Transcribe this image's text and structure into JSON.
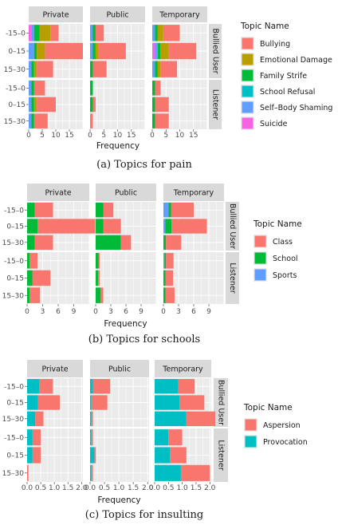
{
  "chart_data": [
    {
      "type": "bar",
      "orientation": "horizontal",
      "stacked": true,
      "caption": "(a) Topics for pain",
      "xlabel": "Frequency",
      "xlim": [
        0,
        20
      ],
      "xticks": [
        0,
        5,
        10,
        15
      ],
      "facet_cols": [
        "Private",
        "Public",
        "Temporary"
      ],
      "facet_rows": [
        "Bullied User",
        "Listener"
      ],
      "categories": [
        "-15–0",
        "0–15",
        "15–30"
      ],
      "legend_title": "Topic Name",
      "series": [
        {
          "name": "Bullying",
          "color": "#F8766D"
        },
        {
          "name": "Emotional Damage",
          "color": "#B79F00"
        },
        {
          "name": "Family Strife",
          "color": "#00BA38"
        },
        {
          "name": "School Refusal",
          "color": "#00BFC4"
        },
        {
          "name": "Self–Body Shaming",
          "color": "#619CFF"
        },
        {
          "name": "Suicide",
          "color": "#F564E3"
        }
      ],
      "panels": [
        {
          "row": 0,
          "col": 0,
          "bars": [
            [
              3,
              4,
              2,
              0,
              1,
              1
            ],
            [
              14,
              3,
              1,
              0,
              2,
              0
            ],
            [
              6,
              1,
              1,
              0,
              1,
              0
            ]
          ]
        },
        {
          "row": 0,
          "col": 1,
          "bars": [
            [
              3,
              0,
              1,
              0,
              1,
              0
            ],
            [
              10,
              1,
              1,
              0,
              1,
              0
            ],
            [
              5,
              0,
              1,
              0,
              0,
              0
            ]
          ]
        },
        {
          "row": 0,
          "col": 2,
          "bars": [
            [
              6,
              2,
              1,
              0,
              1,
              0
            ],
            [
              10,
              3,
              1,
              0,
              1,
              1
            ],
            [
              6,
              1,
              1,
              0,
              1,
              0
            ]
          ]
        },
        {
          "row": 1,
          "col": 0,
          "bars": [
            [
              4,
              0,
              1,
              0,
              1,
              0
            ],
            [
              7,
              1,
              1,
              0,
              1,
              0
            ],
            [
              5,
              0,
              1,
              0,
              1,
              0
            ]
          ]
        },
        {
          "row": 1,
          "col": 1,
          "bars": [
            [
              0,
              0,
              1,
              0,
              0,
              0
            ],
            [
              1,
              0,
              1,
              0,
              0,
              0
            ],
            [
              1,
              0,
              0,
              0,
              0,
              0
            ]
          ]
        },
        {
          "row": 1,
          "col": 2,
          "bars": [
            [
              2,
              0,
              1,
              0,
              0,
              0
            ],
            [
              5,
              0,
              1,
              0,
              0,
              0
            ],
            [
              5,
              0,
              1,
              0,
              0,
              0
            ]
          ]
        }
      ]
    },
    {
      "type": "bar",
      "orientation": "horizontal",
      "stacked": true,
      "caption": "(b) Topics for schools",
      "xlabel": "Frequency",
      "xlim": [
        0,
        12
      ],
      "xticks": [
        0,
        3,
        6,
        9
      ],
      "facet_cols": [
        "Private",
        "Public",
        "Temporary"
      ],
      "facet_rows": [
        "Bullied User",
        "Listener"
      ],
      "categories": [
        "-15–0",
        "0–15",
        "15–30"
      ],
      "legend_title": "Topic Name",
      "series": [
        {
          "name": "Class",
          "color": "#F8766D"
        },
        {
          "name": "School",
          "color": "#00BA38"
        },
        {
          "name": "Sports",
          "color": "#619CFF"
        }
      ],
      "panels": [
        {
          "row": 0,
          "col": 0,
          "bars": [
            [
              3.5,
              1.5,
              0
            ],
            [
              12,
              2,
              0
            ],
            [
              3.5,
              1.5,
              0
            ]
          ]
        },
        {
          "row": 0,
          "col": 1,
          "bars": [
            [
              2,
              1.5,
              0
            ],
            [
              3.5,
              1.5,
              0
            ],
            [
              2,
              5,
              0
            ]
          ]
        },
        {
          "row": 0,
          "col": 2,
          "bars": [
            [
              4.5,
              0.5,
              1
            ],
            [
              7,
              1.2,
              0.4
            ],
            [
              3,
              0.5,
              0
            ]
          ]
        },
        {
          "row": 1,
          "col": 0,
          "bars": [
            [
              1.5,
              0.5,
              0
            ],
            [
              3.5,
              1,
              0
            ],
            [
              2,
              0.5,
              0
            ]
          ]
        },
        {
          "row": 1,
          "col": 1,
          "bars": [
            [
              0.2,
              0.6,
              0
            ],
            [
              0.3,
              0.5,
              0
            ],
            [
              0.5,
              1,
              0
            ]
          ]
        },
        {
          "row": 1,
          "col": 2,
          "bars": [
            [
              1.5,
              0.3,
              0.2
            ],
            [
              1.5,
              0.4,
              0
            ],
            [
              1.8,
              0.4,
              0
            ]
          ]
        }
      ]
    },
    {
      "type": "bar",
      "orientation": "horizontal",
      "stacked": true,
      "caption": "(c) Topics for insulting",
      "xlabel": "Frequency",
      "xlim": [
        0,
        2.05
      ],
      "xticks": [
        0.0,
        0.5,
        1.0,
        1.5,
        2.0
      ],
      "xtick_labels": [
        "0.0",
        "0.5",
        "1.0",
        "1.5",
        "2.0"
      ],
      "facet_cols": [
        "Private",
        "Public",
        "Temporary"
      ],
      "facet_rows": [
        "Bullied User",
        "Listener"
      ],
      "categories": [
        "-15–0",
        "0–15",
        "15–30"
      ],
      "legend_title": "Topic Name",
      "series": [
        {
          "name": "Aspersion",
          "color": "#F8766D"
        },
        {
          "name": "Provocation",
          "color": "#00BFC4"
        }
      ],
      "panels": [
        {
          "row": 0,
          "col": 0,
          "bars": [
            [
              0.5,
              0.45
            ],
            [
              0.8,
              0.4
            ],
            [
              0.3,
              0.3
            ]
          ]
        },
        {
          "row": 0,
          "col": 1,
          "bars": [
            [
              0.6,
              0.1
            ],
            [
              0.55,
              0.05
            ],
            [
              0.05,
              0.05
            ]
          ]
        },
        {
          "row": 0,
          "col": 2,
          "bars": [
            [
              0.6,
              0.85
            ],
            [
              0.9,
              0.9
            ],
            [
              1.05,
              1.15
            ]
          ]
        },
        {
          "row": 1,
          "col": 0,
          "bars": [
            [
              0.3,
              0.2
            ],
            [
              0.3,
              0.2
            ],
            [
              0.05,
              0
            ]
          ]
        },
        {
          "row": 1,
          "col": 1,
          "bars": [
            [
              0.05,
              0.05
            ],
            [
              0.05,
              0.15
            ],
            [
              0.05,
              0.05
            ]
          ]
        },
        {
          "row": 1,
          "col": 2,
          "bars": [
            [
              0.5,
              0.5
            ],
            [
              0.6,
              0.55
            ],
            [
              1.05,
              0.95
            ]
          ]
        }
      ]
    }
  ]
}
